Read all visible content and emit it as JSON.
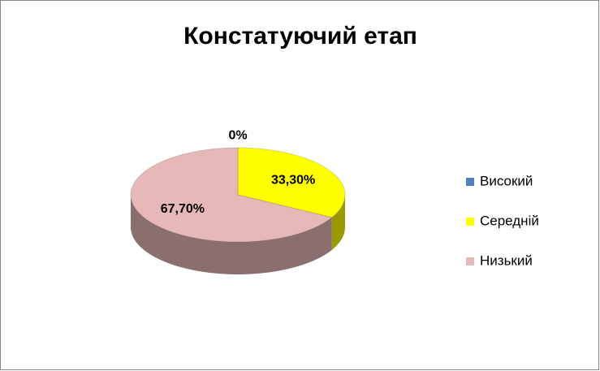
{
  "chart_data": {
    "type": "pie",
    "title": "Констатуючий етап",
    "categories": [
      "Високий",
      "Середній",
      "Низький"
    ],
    "values": [
      0,
      33.3,
      67.7
    ],
    "value_labels": [
      "0%",
      "33,30%",
      "67,70%"
    ],
    "colors": [
      "#4f81bd",
      "#ffff00",
      "#e6b9b8"
    ],
    "legend": "right"
  }
}
